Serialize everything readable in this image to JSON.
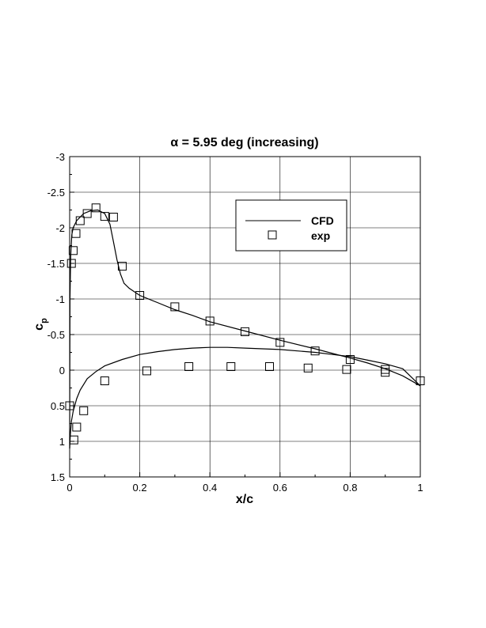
{
  "chart_data": {
    "type": "line",
    "title": "α = 5.95 deg (increasing)",
    "xlabel": "x/c",
    "ylabel": "c",
    "ylabel_subscript": "p",
    "xlim": [
      0,
      1
    ],
    "ylim": [
      1.5,
      -3
    ],
    "y_inverted": true,
    "grid": true,
    "legend_position": "upper-right",
    "x_ticks": [
      "0",
      "0.2",
      "0.4",
      "0.6",
      "0.8",
      "1"
    ],
    "y_ticks": [
      "-3",
      "-2.5",
      "-2",
      "-1.5",
      "-1",
      "-0.5",
      "0",
      "0.5",
      "1",
      "1.5"
    ],
    "series": [
      {
        "name": "CFD",
        "style": "line",
        "color": "#000000",
        "segments": [
          [
            [
              0,
              1.1
            ],
            [
              0.002,
              0.9
            ],
            [
              0.005,
              0.72
            ],
            [
              0.01,
              0.58
            ],
            [
              0.02,
              0.4
            ],
            [
              0.03,
              0.28
            ],
            [
              0.05,
              0.12
            ],
            [
              0.075,
              0.02
            ],
            [
              0.1,
              -0.06
            ],
            [
              0.15,
              -0.15
            ],
            [
              0.2,
              -0.22
            ],
            [
              0.25,
              -0.26
            ],
            [
              0.3,
              -0.29
            ],
            [
              0.35,
              -0.31
            ],
            [
              0.4,
              -0.32
            ],
            [
              0.45,
              -0.32
            ],
            [
              0.5,
              -0.31
            ],
            [
              0.55,
              -0.3
            ],
            [
              0.6,
              -0.29
            ],
            [
              0.65,
              -0.27
            ],
            [
              0.7,
              -0.25
            ],
            [
              0.75,
              -0.22
            ],
            [
              0.8,
              -0.19
            ],
            [
              0.85,
              -0.14
            ],
            [
              0.9,
              -0.09
            ],
            [
              0.95,
              -0.02
            ],
            [
              1.0,
              0.22
            ]
          ],
          [
            [
              0,
              1.1
            ],
            [
              0.001,
              -1.0
            ],
            [
              0.003,
              -1.6
            ],
            [
              0.006,
              -1.9
            ],
            [
              0.01,
              -2.0
            ],
            [
              0.02,
              -2.1
            ],
            [
              0.04,
              -2.2
            ],
            [
              0.06,
              -2.24
            ],
            [
              0.08,
              -2.25
            ],
            [
              0.1,
              -2.2
            ],
            [
              0.115,
              -2.05
            ],
            [
              0.125,
              -1.8
            ],
            [
              0.135,
              -1.55
            ],
            [
              0.145,
              -1.35
            ],
            [
              0.155,
              -1.22
            ],
            [
              0.17,
              -1.15
            ],
            [
              0.2,
              -1.05
            ],
            [
              0.25,
              -0.95
            ],
            [
              0.3,
              -0.85
            ],
            [
              0.35,
              -0.77
            ],
            [
              0.4,
              -0.68
            ],
            [
              0.5,
              -0.55
            ],
            [
              0.6,
              -0.42
            ],
            [
              0.7,
              -0.3
            ],
            [
              0.8,
              -0.17
            ],
            [
              0.85,
              -0.1
            ],
            [
              0.9,
              -0.02
            ],
            [
              0.95,
              0.08
            ],
            [
              1.0,
              0.22
            ]
          ]
        ]
      },
      {
        "name": "exp",
        "style": "square-marker",
        "color": "#000000",
        "points": [
          [
            0.0,
            0.5
          ],
          [
            0.005,
            -1.5
          ],
          [
            0.01,
            -1.68
          ],
          [
            0.018,
            -1.92
          ],
          [
            0.03,
            -2.1
          ],
          [
            0.05,
            -2.2
          ],
          [
            0.075,
            -2.28
          ],
          [
            0.1,
            -2.16
          ],
          [
            0.125,
            -2.15
          ],
          [
            0.15,
            -1.46
          ],
          [
            0.2,
            -1.05
          ],
          [
            0.3,
            -0.89
          ],
          [
            0.4,
            -0.69
          ],
          [
            0.5,
            -0.54
          ],
          [
            0.6,
            -0.39
          ],
          [
            0.7,
            -0.27
          ],
          [
            0.8,
            -0.15
          ],
          [
            0.9,
            -0.01
          ],
          [
            1.0,
            0.15
          ],
          [
            0.012,
            0.98
          ],
          [
            0.02,
            0.8
          ],
          [
            0.04,
            0.57
          ],
          [
            0.1,
            0.15
          ],
          [
            0.22,
            0.01
          ],
          [
            0.34,
            -0.05
          ],
          [
            0.46,
            -0.05
          ],
          [
            0.57,
            -0.05
          ],
          [
            0.68,
            -0.03
          ],
          [
            0.79,
            -0.01
          ],
          [
            0.9,
            0.03
          ]
        ]
      }
    ]
  }
}
